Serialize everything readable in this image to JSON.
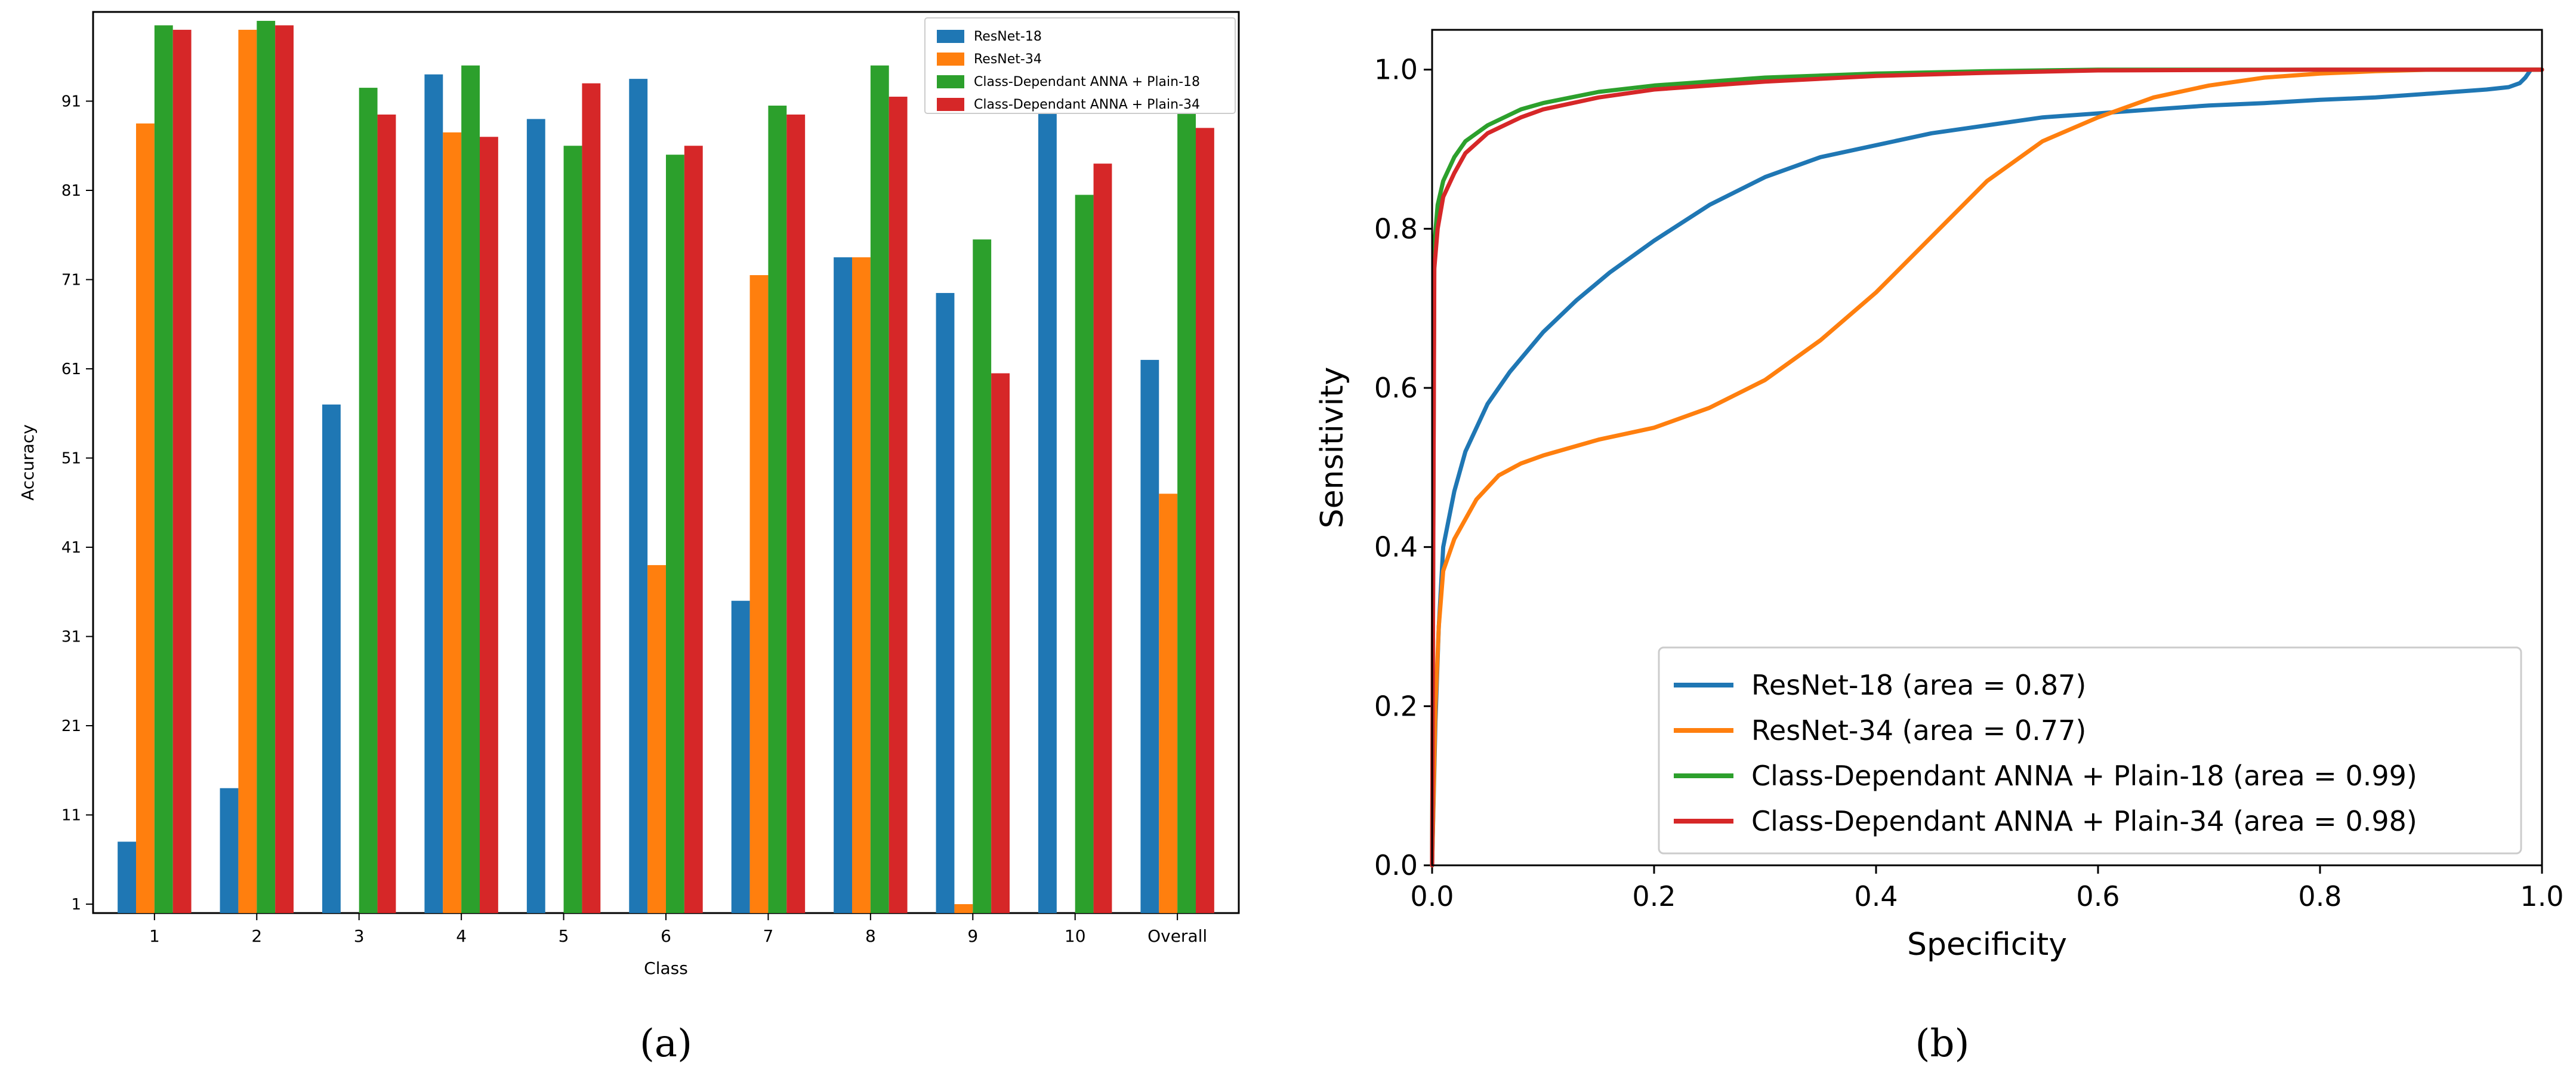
{
  "chart_data": [
    {
      "id": "a",
      "type": "bar",
      "panel_label": "(a)",
      "title": "",
      "xlabel": "Class",
      "ylabel": "Accuracy",
      "ylim": [
        0,
        101
      ],
      "yticks": [
        1,
        11,
        21,
        31,
        41,
        51,
        61,
        71,
        81,
        91
      ],
      "grid": false,
      "legend_position": "top-right",
      "categories": [
        "1",
        "2",
        "3",
        "4",
        "5",
        "6",
        "7",
        "8",
        "9",
        "10",
        "Overall"
      ],
      "series": [
        {
          "name": "ResNet-18",
          "color": "#1f77b4",
          "values": [
            8,
            14,
            57,
            94,
            89,
            93.5,
            35,
            73.5,
            69.5,
            93,
            62
          ]
        },
        {
          "name": "ResNet-34",
          "color": "#ff7f0e",
          "values": [
            88.5,
            99,
            0,
            87.5,
            0,
            39,
            71.5,
            73.5,
            1,
            0,
            47
          ]
        },
        {
          "name": "Class-Dependant ANNA + Plain-18",
          "color": "#2ca02c",
          "values": [
            99.5,
            100,
            92.5,
            95,
            86,
            85,
            90.5,
            95,
            75.5,
            80.5,
            90
          ]
        },
        {
          "name": "Class-Dependant ANNA + Plain-34",
          "color": "#d62728",
          "values": [
            99,
            99.5,
            89.5,
            87,
            93,
            86,
            89.5,
            91.5,
            60.5,
            84,
            88
          ]
        }
      ]
    },
    {
      "id": "b",
      "type": "line",
      "panel_label": "(b)",
      "title": "",
      "xlabel": "Specificity",
      "ylabel": "Sensitivity",
      "xlim": [
        0,
        1
      ],
      "ylim": [
        0,
        1.05
      ],
      "xticks": [
        "0.0",
        "0.2",
        "0.4",
        "0.6",
        "0.8",
        "1.0"
      ],
      "yticks": [
        "0.0",
        "0.2",
        "0.4",
        "0.6",
        "0.8",
        "1.0"
      ],
      "grid": false,
      "legend_position": "lower-right",
      "series": [
        {
          "name": "ResNet-18",
          "label": "ResNet-18 (area = 0.87)",
          "color": "#1f77b4",
          "x": [
            0,
            0.003,
            0.006,
            0.01,
            0.02,
            0.03,
            0.05,
            0.07,
            0.1,
            0.13,
            0.16,
            0.2,
            0.25,
            0.3,
            0.35,
            0.4,
            0.45,
            0.5,
            0.55,
            0.6,
            0.65,
            0.7,
            0.75,
            0.8,
            0.85,
            0.9,
            0.95,
            0.97,
            0.98,
            0.985,
            0.99,
            1.0
          ],
          "y": [
            0,
            0.18,
            0.3,
            0.4,
            0.47,
            0.52,
            0.58,
            0.62,
            0.67,
            0.71,
            0.745,
            0.785,
            0.83,
            0.865,
            0.89,
            0.905,
            0.92,
            0.93,
            0.94,
            0.945,
            0.95,
            0.955,
            0.958,
            0.962,
            0.965,
            0.97,
            0.975,
            0.978,
            0.983,
            0.99,
            1.0,
            1.0
          ]
        },
        {
          "name": "ResNet-34",
          "label": "ResNet-34 (area = 0.77)",
          "color": "#ff7f0e",
          "x": [
            0,
            0.003,
            0.006,
            0.01,
            0.02,
            0.04,
            0.06,
            0.08,
            0.1,
            0.15,
            0.2,
            0.25,
            0.3,
            0.35,
            0.4,
            0.45,
            0.5,
            0.55,
            0.6,
            0.65,
            0.7,
            0.75,
            0.8,
            0.85,
            0.9,
            0.95,
            1.0
          ],
          "y": [
            0,
            0.2,
            0.3,
            0.37,
            0.41,
            0.46,
            0.49,
            0.505,
            0.515,
            0.535,
            0.55,
            0.575,
            0.61,
            0.66,
            0.72,
            0.79,
            0.86,
            0.91,
            0.94,
            0.965,
            0.98,
            0.99,
            0.995,
            0.998,
            1.0,
            1.0,
            1.0
          ]
        },
        {
          "name": "Class-Dependant ANNA + Plain-18",
          "label": "Class-Dependant ANNA + Plain-18 (area = 0.99)",
          "color": "#2ca02c",
          "x": [
            0,
            0.002,
            0.005,
            0.01,
            0.02,
            0.03,
            0.05,
            0.08,
            0.1,
            0.15,
            0.2,
            0.3,
            0.4,
            0.5,
            0.6,
            0.8,
            1.0
          ],
          "y": [
            0,
            0.78,
            0.83,
            0.86,
            0.89,
            0.91,
            0.93,
            0.95,
            0.958,
            0.972,
            0.98,
            0.99,
            0.995,
            0.998,
            1.0,
            1.0,
            1.0
          ]
        },
        {
          "name": "Class-Dependant ANNA + Plain-34",
          "label": "Class-Dependant ANNA + Plain-34 (area = 0.98)",
          "color": "#d62728",
          "x": [
            0,
            0.002,
            0.005,
            0.01,
            0.02,
            0.03,
            0.05,
            0.08,
            0.1,
            0.15,
            0.2,
            0.3,
            0.4,
            0.5,
            0.6,
            0.8,
            1.0
          ],
          "y": [
            0,
            0.75,
            0.8,
            0.84,
            0.87,
            0.895,
            0.92,
            0.94,
            0.95,
            0.965,
            0.975,
            0.985,
            0.992,
            0.996,
            0.999,
            1.0,
            1.0
          ]
        }
      ]
    }
  ]
}
